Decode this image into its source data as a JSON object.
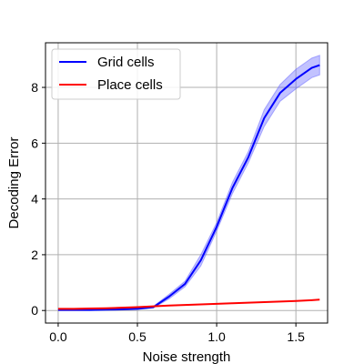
{
  "chart_data": {
    "type": "line",
    "xlabel": "Noise strength",
    "ylabel": "Decoding Error",
    "xlim": [
      -0.08,
      1.7
    ],
    "ylim": [
      -0.45,
      9.6
    ],
    "xticks": [
      0.0,
      0.5,
      1.0,
      1.5
    ],
    "xtick_labels": [
      "0.0",
      "0.5",
      "1.0",
      "1.5"
    ],
    "yticks": [
      0,
      2,
      4,
      6,
      8
    ],
    "ytick_labels": [
      "0",
      "2",
      "4",
      "6",
      "8"
    ],
    "grid": true,
    "legend": "top-left",
    "x": [
      0.0,
      0.1,
      0.2,
      0.3,
      0.4,
      0.5,
      0.6,
      0.7,
      0.8,
      0.9,
      1.0,
      1.1,
      1.2,
      1.3,
      1.4,
      1.5,
      1.6,
      1.65
    ],
    "series": [
      {
        "name": "Grid cells",
        "color": "#0000ff",
        "band_color": "#6666ff",
        "values": [
          0.02,
          0.02,
          0.02,
          0.03,
          0.04,
          0.06,
          0.12,
          0.5,
          0.95,
          1.8,
          3.0,
          4.4,
          5.5,
          6.9,
          7.8,
          8.3,
          8.7,
          8.8
        ],
        "lower": [
          0.01,
          0.01,
          0.01,
          0.02,
          0.03,
          0.04,
          0.09,
          0.42,
          0.85,
          1.6,
          2.85,
          4.2,
          5.3,
          6.6,
          7.5,
          7.95,
          8.35,
          8.45
        ],
        "upper": [
          0.03,
          0.03,
          0.03,
          0.04,
          0.05,
          0.08,
          0.15,
          0.58,
          1.05,
          2.0,
          3.15,
          4.6,
          5.7,
          7.2,
          8.1,
          8.65,
          9.05,
          9.15
        ]
      },
      {
        "name": "Place cells",
        "color": "#ff0000",
        "values": [
          0.06,
          0.06,
          0.07,
          0.08,
          0.1,
          0.12,
          0.15,
          0.18,
          0.2,
          0.22,
          0.24,
          0.26,
          0.28,
          0.3,
          0.32,
          0.34,
          0.37,
          0.39
        ]
      }
    ]
  }
}
